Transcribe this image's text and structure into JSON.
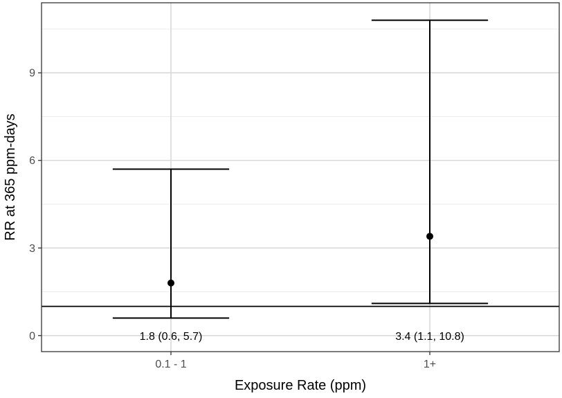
{
  "chart_data": {
    "type": "scatter",
    "subtype": "point-with-errorbars",
    "xlabel": "Exposure Rate (ppm)",
    "ylabel": "RR at 365 ppm-days",
    "categories": [
      "0.1 - 1",
      "1+"
    ],
    "points": [
      {
        "category": "0.1 - 1",
        "estimate": 1.8,
        "lower": 0.6,
        "upper": 5.7,
        "label": "1.8 (0.6, 5.7)"
      },
      {
        "category": "1+",
        "estimate": 3.4,
        "lower": 1.1,
        "upper": 10.8,
        "label": "3.4 (1.1, 10.8)"
      }
    ],
    "yticks": [
      0,
      3,
      6,
      9
    ],
    "ytick_labels": [
      "0",
      "3",
      "6",
      "9"
    ],
    "ylim": [
      -0.55,
      11.4
    ],
    "reference_line": 1,
    "grid": true,
    "legend": "none"
  }
}
